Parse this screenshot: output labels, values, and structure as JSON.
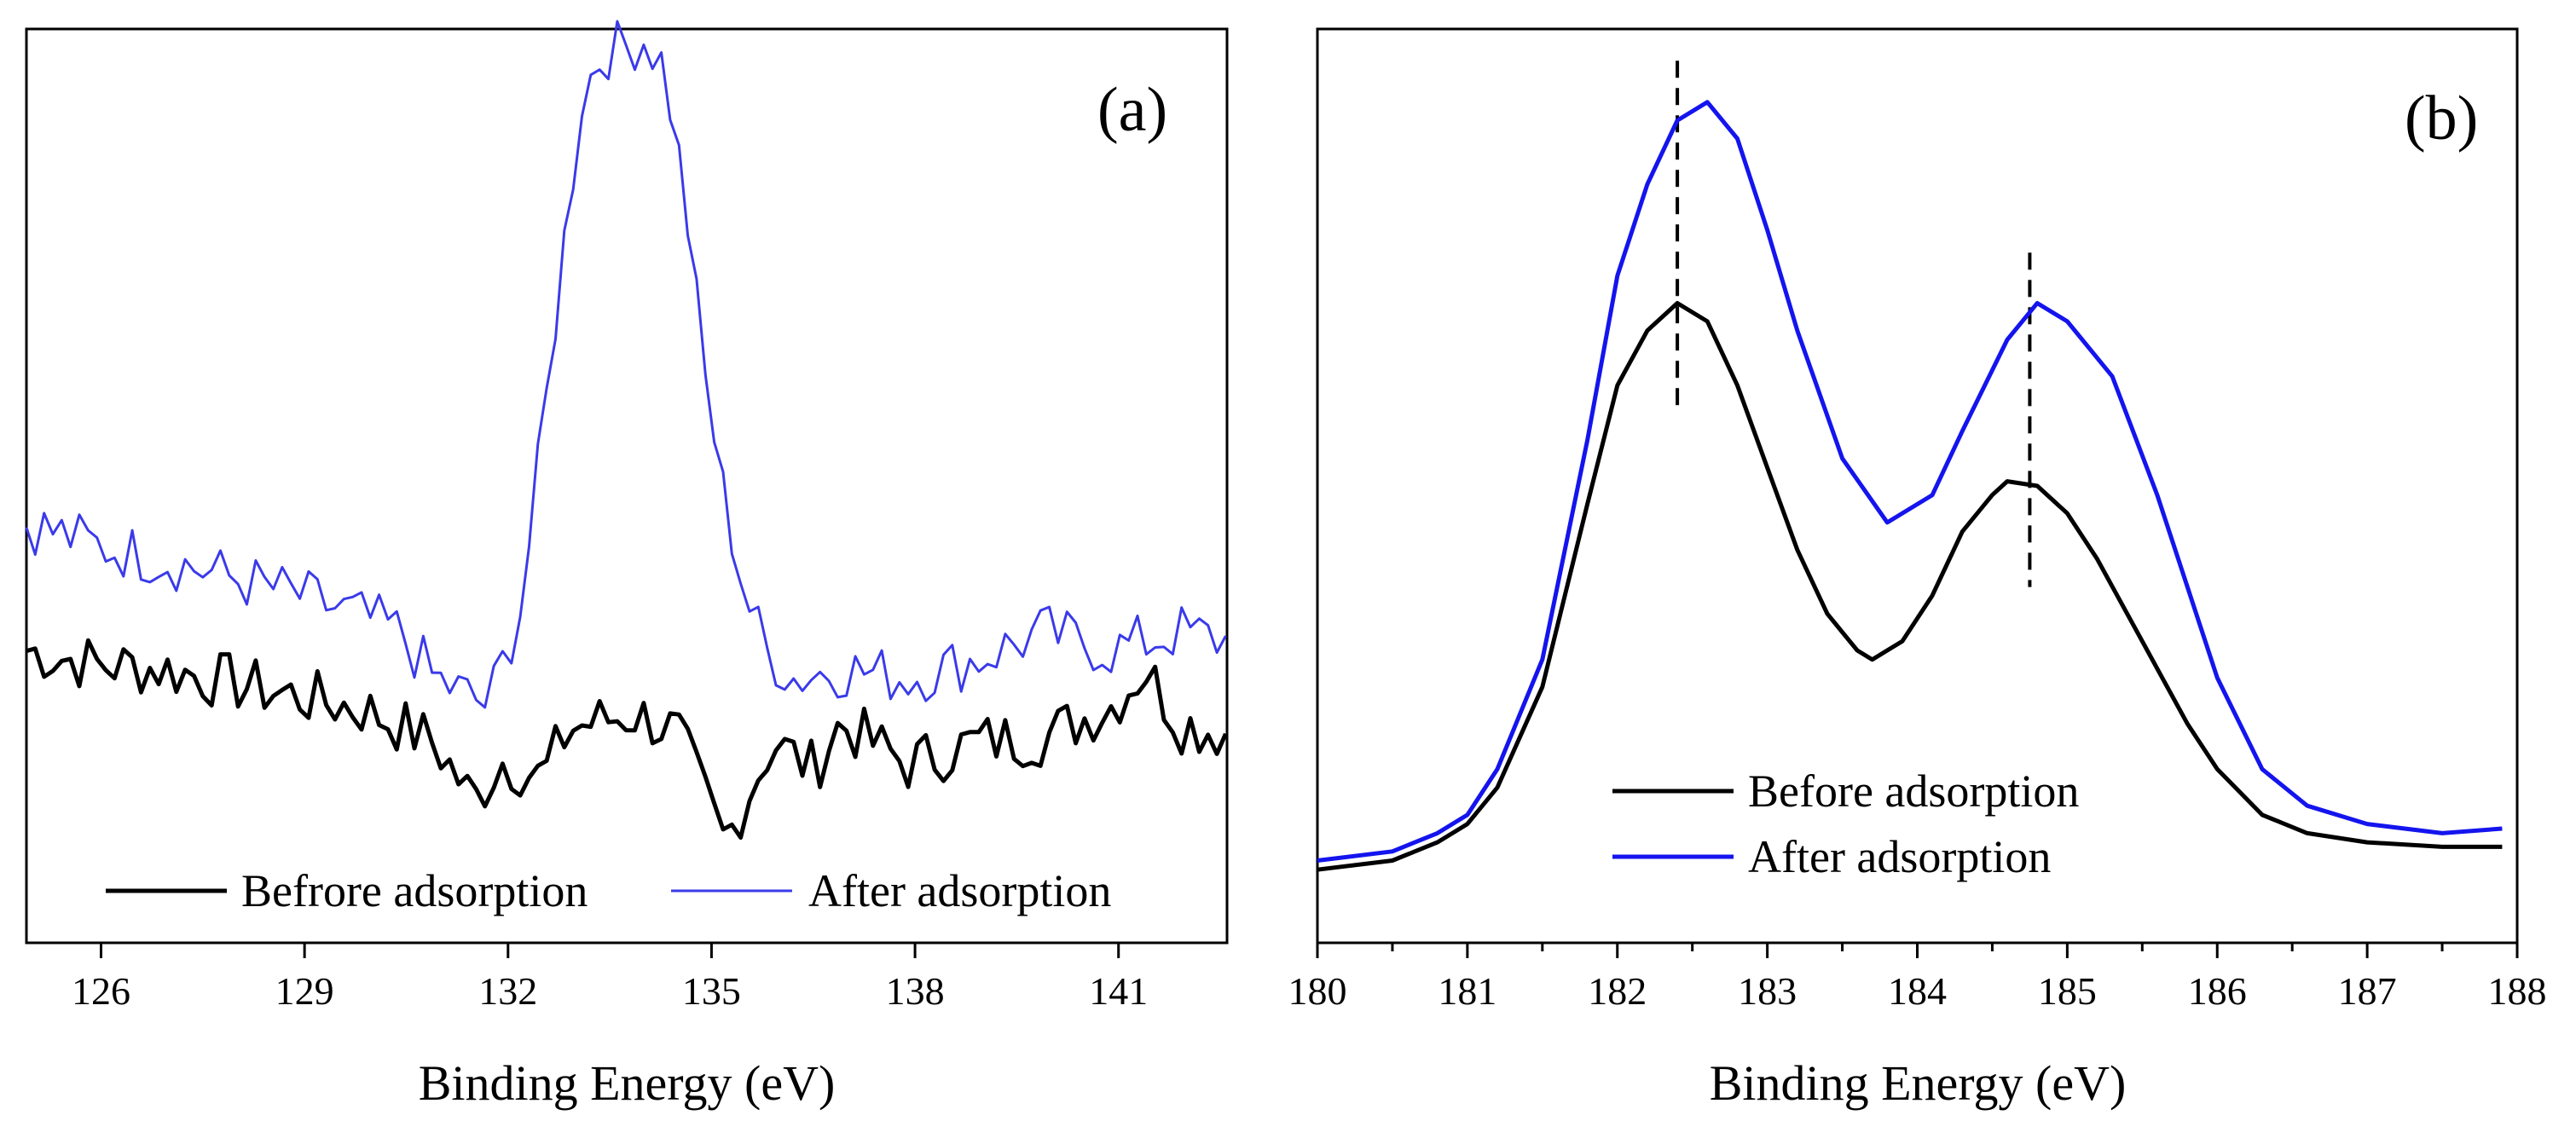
{
  "chart_data": [
    {
      "type": "line",
      "panel_label": "(a)",
      "xlabel": "Binding Energy (eV)",
      "ylabel": "",
      "xlim": [
        124.9,
        142.6
      ],
      "ylim": [
        0,
        100
      ],
      "x_ticks": [
        126,
        129,
        132,
        135,
        138,
        141
      ],
      "x_tick_labels": [
        "126",
        "129",
        "132",
        "135",
        "138",
        "141"
      ],
      "y_ticks_shown": false,
      "grid": false,
      "legend": {
        "placement": "bottom",
        "orientation": "horizontal"
      },
      "series": [
        {
          "name": "Befrore adsorption",
          "color": "#000000",
          "x": [
            124.9,
            125.9,
            126.9,
            127.9,
            128.9,
            129.9,
            130.9,
            131.5,
            131.9,
            132.5,
            132.9,
            133.5,
            133.9,
            134.5,
            134.9,
            135.2,
            135.9,
            136.5,
            136.9,
            137.9,
            138.9,
            139.9,
            140.9,
            141.4,
            141.9,
            142.6
          ],
          "y": [
            32,
            30.5,
            30,
            28.5,
            27,
            25.5,
            22,
            15.5,
            20,
            18,
            23.5,
            24.5,
            25,
            23,
            16,
            11,
            22,
            19,
            24,
            19.5,
            22,
            22.5,
            26,
            30,
            24,
            23
          ]
        },
        {
          "name": "After adsorption",
          "color": "#3a3aea",
          "x": [
            124.9,
            125.9,
            126.9,
            127.9,
            128.9,
            129.9,
            130.4,
            130.9,
            131.4,
            131.7,
            131.9,
            132.2,
            132.5,
            132.8,
            133.1,
            133.4,
            133.7,
            134.0,
            134.3,
            134.6,
            134.9,
            135.2,
            135.5,
            135.8,
            136.2,
            136.9,
            137.9,
            138.9,
            139.9,
            140.9,
            141.9,
            142.6
          ],
          "y": [
            46,
            43.5,
            42,
            40,
            38,
            35.5,
            34,
            29,
            27,
            26,
            30,
            37,
            55,
            75,
            93,
            97.5,
            98,
            99,
            96,
            82,
            62,
            48,
            38,
            32,
            29,
            30,
            29,
            31,
            34,
            32,
            34,
            33
          ]
        }
      ]
    },
    {
      "type": "line",
      "panel_label": "(b)",
      "xlabel": "Binding Energy (eV)",
      "ylabel": "",
      "xlim": [
        180,
        188
      ],
      "ylim": [
        0,
        100
      ],
      "x_ticks": [
        180,
        181,
        182,
        183,
        184,
        185,
        186,
        187,
        188
      ],
      "x_tick_labels": [
        "180",
        "181",
        "182",
        "183",
        "184",
        "185",
        "186",
        "187",
        "188"
      ],
      "y_ticks_shown": false,
      "grid": false,
      "legend": {
        "placement": "bottom-center",
        "orientation": "vertical"
      },
      "peak_markers": [
        182.4,
        184.75
      ],
      "series": [
        {
          "name": "Before adsorption",
          "color": "#000000",
          "x": [
            180.0,
            180.5,
            180.8,
            181.0,
            181.2,
            181.5,
            181.8,
            182.0,
            182.2,
            182.4,
            182.6,
            182.8,
            183.0,
            183.2,
            183.4,
            183.6,
            183.7,
            183.9,
            184.1,
            184.3,
            184.5,
            184.6,
            184.8,
            185.0,
            185.2,
            185.5,
            185.8,
            186.0,
            186.3,
            186.6,
            187.0,
            187.5,
            187.9
          ],
          "y": [
            8,
            9,
            11,
            13,
            17,
            28,
            48,
            61,
            67,
            70,
            68,
            61,
            52,
            43,
            36,
            32,
            31,
            33,
            38,
            45,
            49,
            50.5,
            50,
            47,
            42,
            33,
            24,
            19,
            14,
            12,
            11,
            10.5,
            10.5
          ]
        },
        {
          "name": "After adsorption",
          "color": "#1414ee",
          "x": [
            180.0,
            180.5,
            180.8,
            181.0,
            181.2,
            181.5,
            181.8,
            182.0,
            182.2,
            182.4,
            182.6,
            182.8,
            183.0,
            183.2,
            183.5,
            183.8,
            184.1,
            184.3,
            184.6,
            184.8,
            185.0,
            185.3,
            185.6,
            186.0,
            186.3,
            186.6,
            187.0,
            187.5,
            187.9
          ],
          "y": [
            9,
            10,
            12,
            14,
            19,
            31,
            55,
            73,
            83,
            90,
            92,
            88,
            78,
            67,
            53,
            46,
            49,
            56,
            66,
            70,
            68,
            62,
            49,
            29,
            19,
            15,
            13,
            12,
            12.5
          ]
        }
      ]
    }
  ]
}
